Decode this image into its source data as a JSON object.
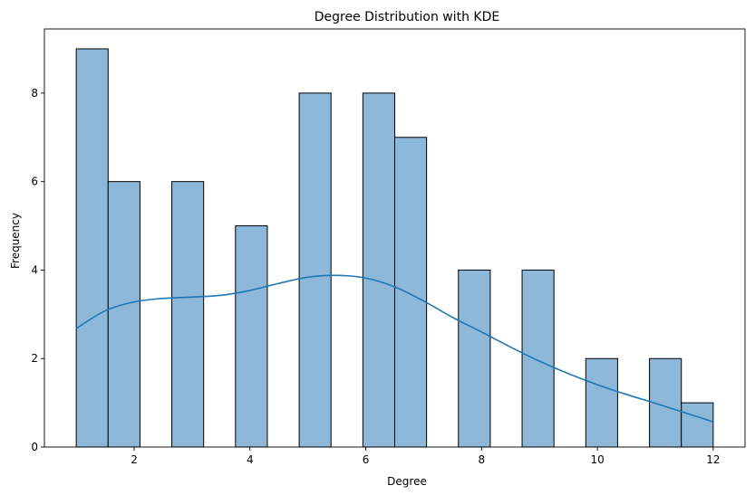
{
  "chart_data": {
    "type": "bar",
    "subtype": "histogram-with-kde",
    "title": "Degree Distribution with KDE",
    "xlabel": "Degree",
    "ylabel": "Frequency",
    "xlim": [
      0.45,
      12.55
    ],
    "ylim": [
      0,
      9.45
    ],
    "xticks": [
      2,
      4,
      6,
      8,
      10,
      12
    ],
    "yticks": [
      0,
      2,
      4,
      6,
      8
    ],
    "bins": [
      {
        "x0": 1.0,
        "x1": 1.55,
        "count": 9
      },
      {
        "x0": 1.55,
        "x1": 2.1,
        "count": 6
      },
      {
        "x0": 2.1,
        "x1": 2.65,
        "count": 0
      },
      {
        "x0": 2.65,
        "x1": 3.2,
        "count": 6
      },
      {
        "x0": 3.2,
        "x1": 3.75,
        "count": 0
      },
      {
        "x0": 3.75,
        "x1": 4.3,
        "count": 5
      },
      {
        "x0": 4.3,
        "x1": 4.85,
        "count": 0
      },
      {
        "x0": 4.85,
        "x1": 5.4,
        "count": 8
      },
      {
        "x0": 5.4,
        "x1": 5.95,
        "count": 0
      },
      {
        "x0": 5.95,
        "x1": 6.5,
        "count": 8
      },
      {
        "x0": 6.5,
        "x1": 7.05,
        "count": 7
      },
      {
        "x0": 7.05,
        "x1": 7.6,
        "count": 0
      },
      {
        "x0": 7.6,
        "x1": 8.15,
        "count": 4
      },
      {
        "x0": 8.15,
        "x1": 8.7,
        "count": 0
      },
      {
        "x0": 8.7,
        "x1": 9.25,
        "count": 4
      },
      {
        "x0": 9.25,
        "x1": 9.8,
        "count": 0
      },
      {
        "x0": 9.8,
        "x1": 10.35,
        "count": 2
      },
      {
        "x0": 10.35,
        "x1": 10.9,
        "count": 0
      },
      {
        "x0": 10.9,
        "x1": 11.45,
        "count": 2
      },
      {
        "x0": 11.45,
        "x1": 12.0,
        "count": 1
      }
    ],
    "kde": {
      "x": [
        1.0,
        1.5,
        2.0,
        2.5,
        3.0,
        3.5,
        4.0,
        4.5,
        5.0,
        5.5,
        6.0,
        6.5,
        7.0,
        7.5,
        8.0,
        8.5,
        9.0,
        9.5,
        10.0,
        10.5,
        11.0,
        11.5,
        12.0
      ],
      "y": [
        2.68,
        3.08,
        3.28,
        3.36,
        3.39,
        3.43,
        3.54,
        3.7,
        3.84,
        3.88,
        3.82,
        3.62,
        3.3,
        2.93,
        2.6,
        2.26,
        1.94,
        1.66,
        1.41,
        1.19,
        0.99,
        0.78,
        0.57
      ]
    },
    "colors": {
      "bar_fill": "#8db8da",
      "bar_edge": "#000000",
      "kde_line": "#1f77b4"
    },
    "grid": false,
    "legend": "none"
  }
}
